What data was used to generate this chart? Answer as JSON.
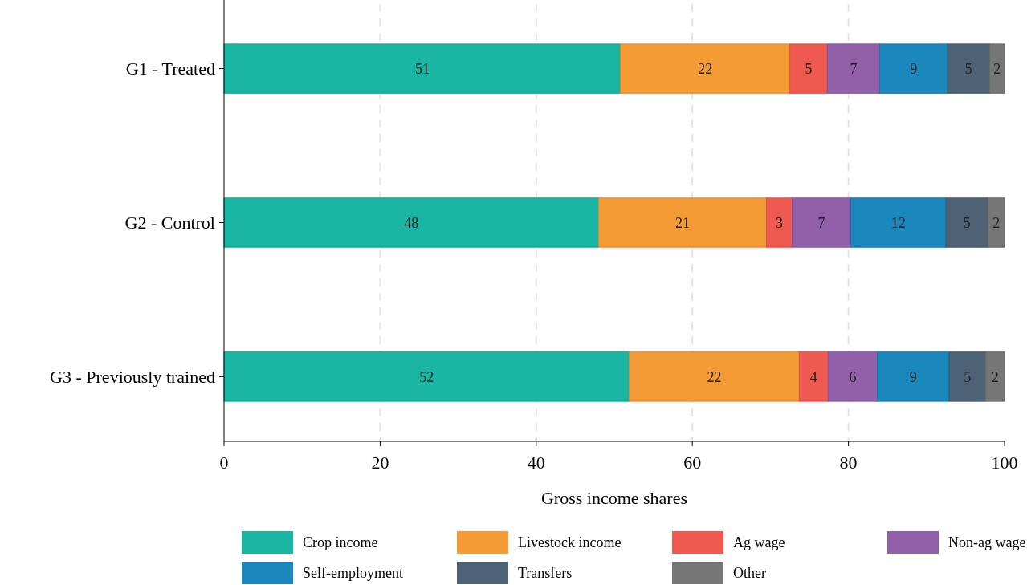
{
  "chart_data": {
    "type": "bar",
    "orientation": "horizontal",
    "stacked": true,
    "xlabel": "Gross income shares",
    "categories": [
      "G1 - Treated",
      "G2 - Control",
      "G3 - Previously trained"
    ],
    "xlim": [
      0,
      100
    ],
    "xticks": [
      0,
      20,
      40,
      60,
      80,
      100
    ],
    "grid": "x",
    "legend": "bottom",
    "series": [
      {
        "name": "Crop income",
        "color": "#1ab5a3",
        "values": [
          50.8,
          48.0,
          51.9
        ],
        "value_labels": [
          "51",
          "48",
          "52"
        ]
      },
      {
        "name": "Livestock income",
        "color": "#f59b35",
        "values": [
          21.7,
          21.5,
          21.8
        ],
        "value_labels": [
          "22",
          "21",
          "22"
        ]
      },
      {
        "name": "Ag wage",
        "color": "#ef5a50",
        "values": [
          4.8,
          3.3,
          3.7
        ],
        "value_labels": [
          "5",
          "3",
          "4"
        ]
      },
      {
        "name": "Non-ag wage",
        "color": "#9260a9",
        "values": [
          6.7,
          7.5,
          6.3
        ],
        "value_labels": [
          "7",
          "7",
          "6"
        ]
      },
      {
        "name": "Self-employment",
        "color": "#1a87bd",
        "values": [
          8.7,
          12.2,
          9.2
        ],
        "value_labels": [
          "9",
          "12",
          "9"
        ]
      },
      {
        "name": "Transfers",
        "color": "#4e6275",
        "values": [
          5.4,
          5.4,
          4.7
        ],
        "value_labels": [
          "5",
          "5",
          "5"
        ]
      },
      {
        "name": "Other",
        "color": "#767676",
        "values": [
          1.9,
          2.1,
          2.4
        ],
        "value_labels": [
          "2",
          "2",
          "2"
        ]
      }
    ]
  }
}
